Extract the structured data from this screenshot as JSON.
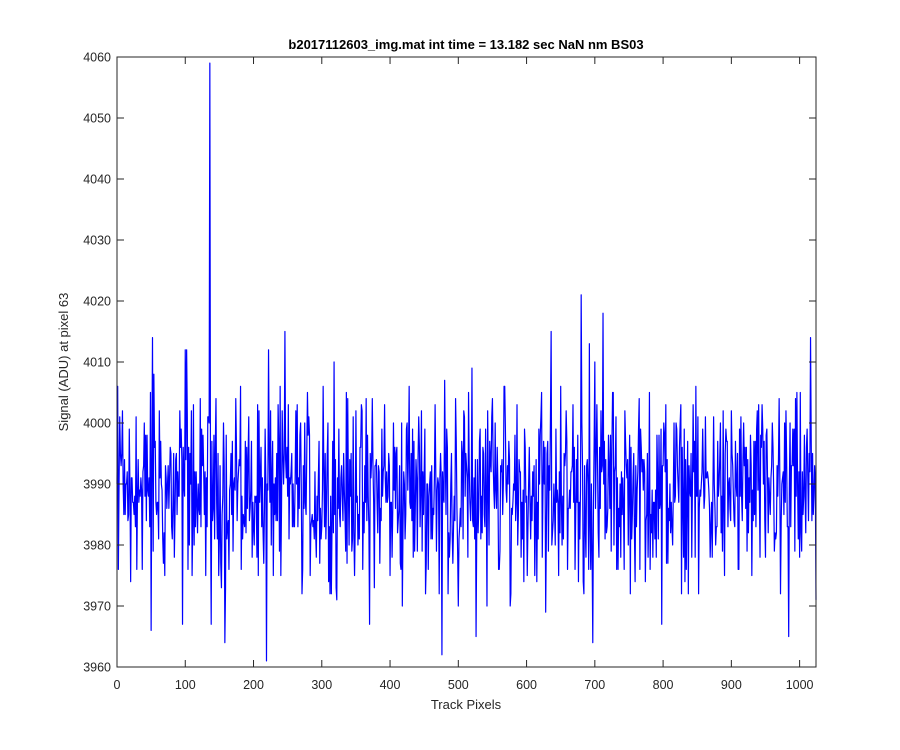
{
  "chart_data": {
    "type": "line",
    "title": "b2017112603_img.mat int time = 13.182 sec  NaN nm BS03",
    "xlabel": "Track Pixels",
    "ylabel": "Signal (ADU) at pixel 63",
    "xlim": [
      0,
      1024
    ],
    "ylim": [
      3960,
      4060
    ],
    "xticks": [
      0,
      100,
      200,
      300,
      400,
      500,
      600,
      700,
      800,
      900,
      1000
    ],
    "yticks": [
      3960,
      3970,
      3980,
      3990,
      4000,
      4010,
      4020,
      4030,
      4040,
      4050,
      4060
    ],
    "grid": false,
    "legend": "none",
    "line_color": "#0000ff",
    "noise": {
      "mean": 3989,
      "typical_range": [
        3975,
        4003
      ],
      "seed": 12345
    },
    "series": [
      {
        "n_points": 1024,
        "points": [
          [
            0,
            3990
          ],
          [
            1,
            4006
          ],
          [
            2,
            3976
          ],
          [
            5,
            3995
          ],
          [
            8,
            4002
          ],
          [
            12,
            3985
          ],
          [
            20,
            3974
          ],
          [
            28,
            4001
          ],
          [
            37,
            3976
          ],
          [
            44,
            3998
          ],
          [
            50,
            3966
          ],
          [
            52,
            4014
          ],
          [
            54,
            4008
          ],
          [
            58,
            3985
          ],
          [
            62,
            4002
          ],
          [
            70,
            3975
          ],
          [
            78,
            3996
          ],
          [
            84,
            3978
          ],
          [
            92,
            4002
          ],
          [
            96,
            3967
          ],
          [
            100,
            4012
          ],
          [
            102,
            4012
          ],
          [
            106,
            3980
          ],
          [
            112,
            4003
          ],
          [
            118,
            3982
          ],
          [
            124,
            3999
          ],
          [
            128,
            3985
          ],
          [
            136,
            4059
          ],
          [
            138,
            3967
          ],
          [
            142,
            3998
          ],
          [
            150,
            3981
          ],
          [
            156,
            4000
          ],
          [
            158,
            3964
          ],
          [
            166,
            3990
          ],
          [
            174,
            4004
          ],
          [
            182,
            3976
          ],
          [
            190,
            3996
          ],
          [
            198,
            3978
          ],
          [
            206,
            4003
          ],
          [
            214,
            3982
          ],
          [
            219,
            3961
          ],
          [
            222,
            4012
          ],
          [
            226,
            3980
          ],
          [
            236,
            4003
          ],
          [
            240,
            3975
          ],
          [
            246,
            4015
          ],
          [
            252,
            3981
          ],
          [
            262,
            4002
          ],
          [
            272,
            3976
          ],
          [
            282,
            3998
          ],
          [
            292,
            3978
          ],
          [
            302,
            4006
          ],
          [
            310,
            3974
          ],
          [
            318,
            4010
          ],
          [
            322,
            3971
          ],
          [
            332,
            3995
          ],
          [
            340,
            3980
          ],
          [
            350,
            4002
          ],
          [
            360,
            3976
          ],
          [
            370,
            3967
          ],
          [
            374,
            4004
          ],
          [
            382,
            3982
          ],
          [
            392,
            4003
          ],
          [
            400,
            3975
          ],
          [
            410,
            3996
          ],
          [
            418,
            3970
          ],
          [
            428,
            4006
          ],
          [
            436,
            3979
          ],
          [
            446,
            4002
          ],
          [
            456,
            3976
          ],
          [
            466,
            4003
          ],
          [
            472,
            3972
          ],
          [
            476,
            3962
          ],
          [
            480,
            4007
          ],
          [
            488,
            3981
          ],
          [
            496,
            4004
          ],
          [
            500,
            3970
          ],
          [
            508,
            4002
          ],
          [
            514,
            3978
          ],
          [
            520,
            4009
          ],
          [
            526,
            3965
          ],
          [
            532,
            3999
          ],
          [
            542,
            3970
          ],
          [
            550,
            4004
          ],
          [
            560,
            3976
          ],
          [
            568,
            4006
          ],
          [
            576,
            3970
          ],
          [
            586,
            4003
          ],
          [
            594,
            3981
          ],
          [
            604,
            3996
          ],
          [
            612,
            3975
          ],
          [
            622,
            4005
          ],
          [
            628,
            3969
          ],
          [
            636,
            4015
          ],
          [
            642,
            3980
          ],
          [
            650,
            4006
          ],
          [
            660,
            3976
          ],
          [
            668,
            4003
          ],
          [
            676,
            3974
          ],
          [
            680,
            4021
          ],
          [
            684,
            3972
          ],
          [
            692,
            4013
          ],
          [
            697,
            3964
          ],
          [
            700,
            4010
          ],
          [
            706,
            3978
          ],
          [
            712,
            4018
          ],
          [
            718,
            3983
          ],
          [
            726,
            4005
          ],
          [
            734,
            3976
          ],
          [
            744,
            4002
          ],
          [
            754,
            3981
          ],
          [
            764,
            3999
          ],
          [
            774,
            3974
          ],
          [
            780,
            4005
          ],
          [
            790,
            3978
          ],
          [
            798,
            3967
          ],
          [
            804,
            4003
          ],
          [
            814,
            3980
          ],
          [
            824,
            3996
          ],
          [
            834,
            3976
          ],
          [
            844,
            4003
          ],
          [
            852,
            3972
          ],
          [
            862,
            4001
          ],
          [
            872,
            3978
          ],
          [
            880,
            3997
          ],
          [
            890,
            3975
          ],
          [
            900,
            4002
          ],
          [
            910,
            3976
          ],
          [
            920,
            3996
          ],
          [
            930,
            3975
          ],
          [
            940,
            4003
          ],
          [
            950,
            3978
          ],
          [
            960,
            4000
          ],
          [
            972,
            3972
          ],
          [
            980,
            4002
          ],
          [
            984,
            3965
          ],
          [
            990,
            3999
          ],
          [
            1000,
            3978
          ],
          [
            1010,
            3996
          ],
          [
            1016,
            4014
          ],
          [
            1018,
            3984
          ],
          [
            1022,
            3993
          ],
          [
            1024,
            3971
          ]
        ]
      }
    ]
  }
}
